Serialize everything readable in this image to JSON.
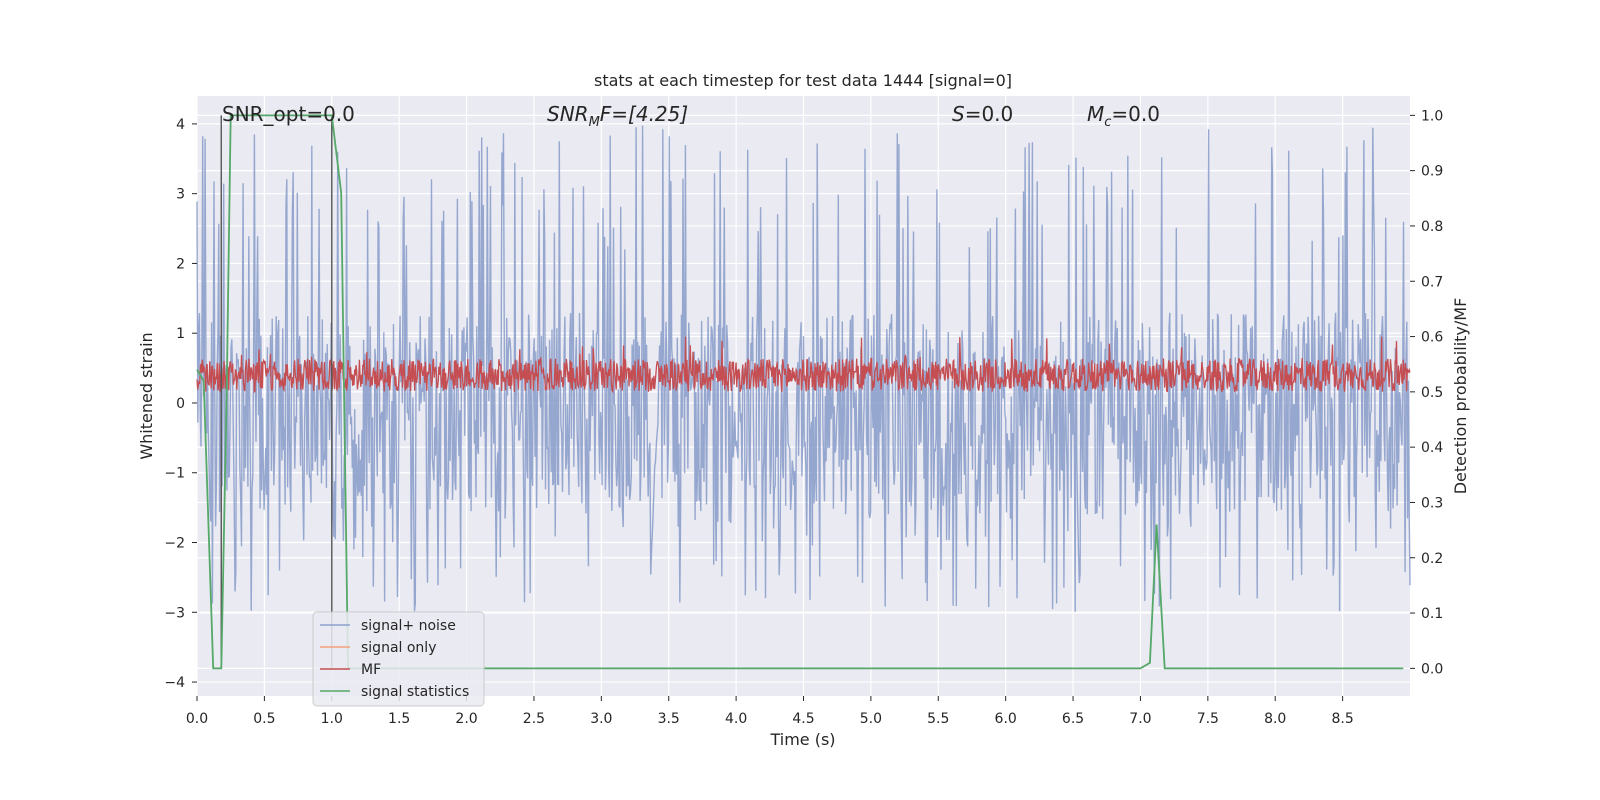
{
  "chart_data": {
    "type": "line",
    "title": "stats at each timestep for test data 1444 [signal=0]",
    "xlabel": "Time (s)",
    "ylabel_left": "Whitened strain",
    "ylabel_right": "Detection probability/MF",
    "xlim": [
      0.0,
      9.0
    ],
    "ylim_left": [
      -4.2,
      4.4
    ],
    "ylim_right": [
      -0.05,
      1.035
    ],
    "x_ticks": [
      "0.0",
      "0.5",
      "1.0",
      "1.5",
      "2.0",
      "2.5",
      "3.0",
      "3.5",
      "4.0",
      "4.5",
      "5.0",
      "5.5",
      "6.0",
      "6.5",
      "7.0",
      "7.5",
      "8.0",
      "8.5"
    ],
    "y_left_ticks": [
      "4",
      "3",
      "2",
      "1",
      "0",
      "−1",
      "−2",
      "−3",
      "−4"
    ],
    "y_right_ticks": [
      "1.0",
      "0.9",
      "0.8",
      "0.7",
      "0.6",
      "0.5",
      "0.4",
      "0.3",
      "0.2",
      "0.1",
      "0.0"
    ],
    "annotations": {
      "snr_opt": "SNR_opt=0.0",
      "snr_mf_prefix": "SNR",
      "snr_mf_sub": "M",
      "snr_mf_suffix": "F=[4.25]",
      "s_label": "S",
      "s_value": "=0.0",
      "mc_label": "M",
      "mc_sub": "c",
      "mc_value": "=0.0"
    },
    "legend": {
      "position": "lower-left",
      "entries": [
        {
          "label": "signal+ noise",
          "color": "#8da0cb"
        },
        {
          "label": "signal only",
          "color": "#f2a07b"
        },
        {
          "label": "MF",
          "color": "#c44e52"
        },
        {
          "label": "signal statistics",
          "color": "#55a868"
        }
      ]
    },
    "vertical_markers": [
      0.18,
      1.0
    ],
    "series": [
      {
        "name": "signal+ noise",
        "axis": "left",
        "kind": "noise",
        "color": "#8da0cb",
        "typical_range": [
          -1.6,
          1.3
        ],
        "peak_range": [
          -3.0,
          4.0
        ]
      },
      {
        "name": "MF",
        "axis": "right",
        "kind": "noise",
        "color": "#c44e52",
        "typical_range": [
          0.5,
          0.56
        ],
        "peak_range": [
          0.5,
          0.6
        ]
      },
      {
        "name": "signal statistics",
        "axis": "right",
        "kind": "line",
        "color": "#55a868",
        "x": [
          0.0,
          0.05,
          0.12,
          0.18,
          0.22,
          0.25,
          0.27,
          1.0,
          1.07,
          1.12,
          1.16,
          7.0,
          7.07,
          7.12,
          7.18,
          8.95
        ],
        "y": [
          0.54,
          0.52,
          0.0,
          0.0,
          0.5,
          1.0,
          1.0,
          1.0,
          0.86,
          0.0,
          0.0,
          0.0,
          0.01,
          0.26,
          0.0,
          0.0
        ]
      }
    ]
  },
  "colors": {
    "plot_bg": "#eaeaf2",
    "grid": "#ffffff",
    "noise": "#8da0cb",
    "mf": "#c44e52",
    "stats": "#55a868",
    "signal_only": "#f2a07b",
    "marker": "#555555"
  }
}
